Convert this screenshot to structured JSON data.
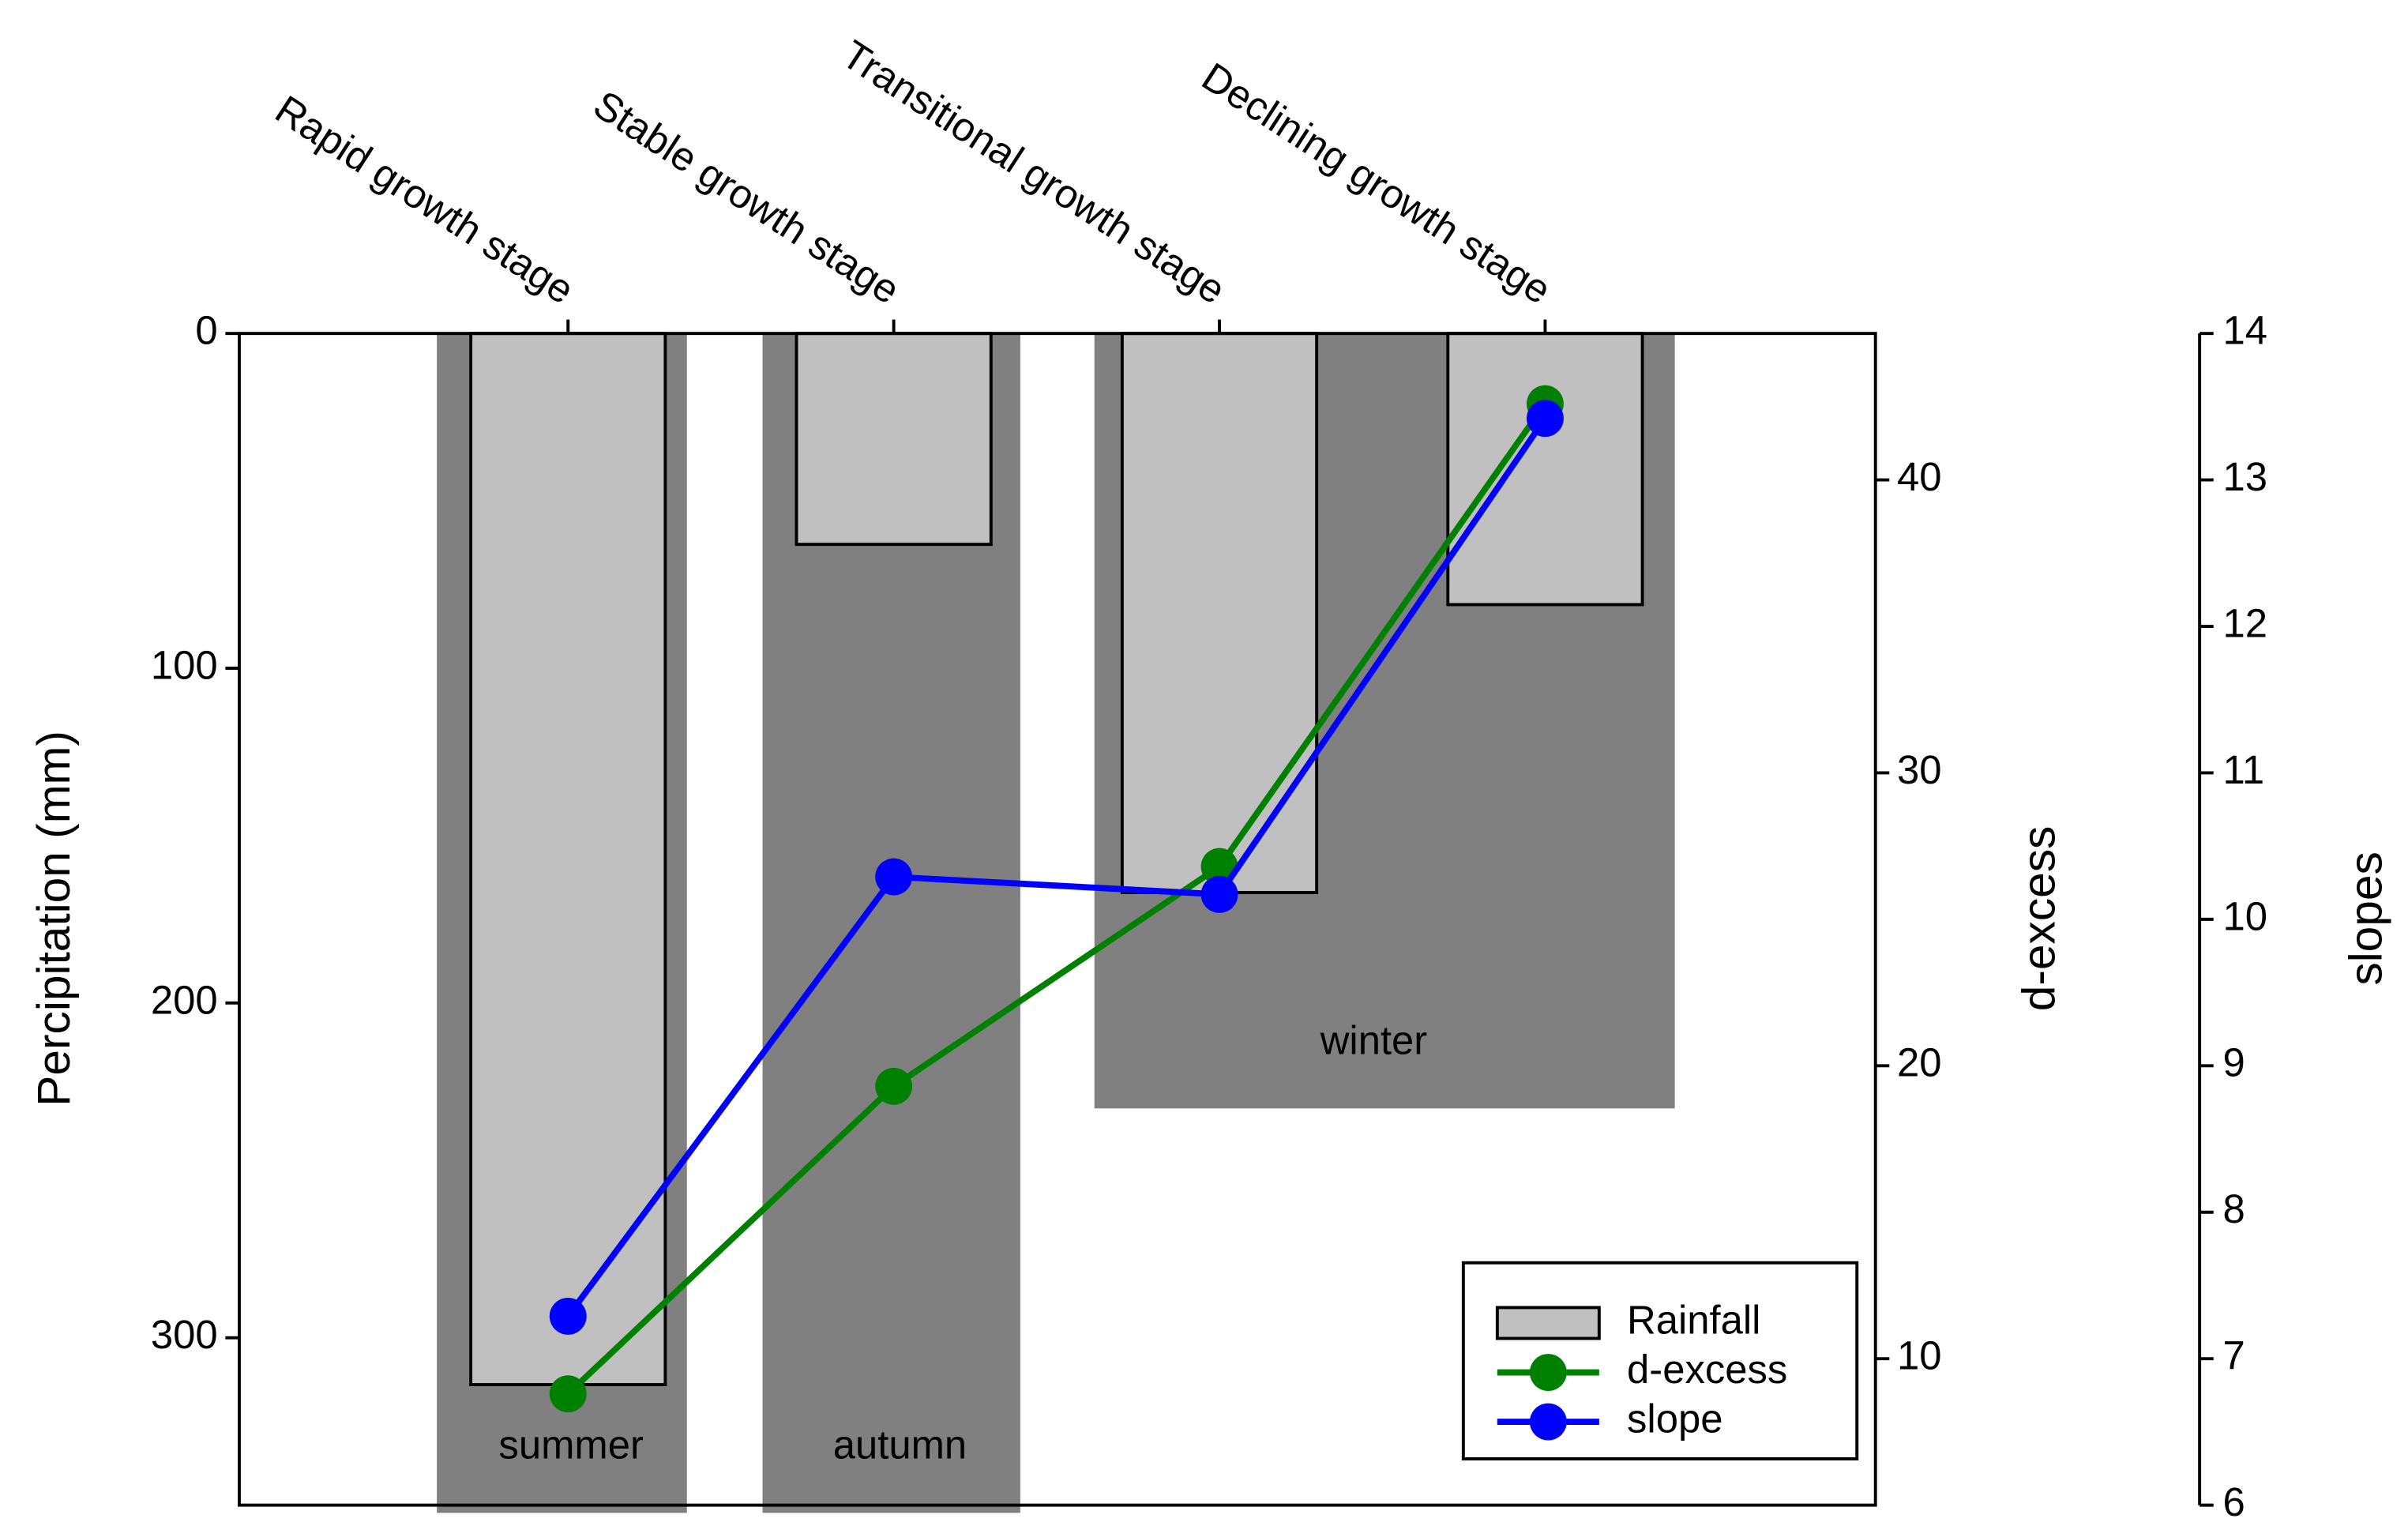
{
  "chart_data": {
    "type": "bar-line",
    "categories": [
      "Rapid growth stage",
      "Stable growth stage",
      "Transitional growth stage",
      "Declining growth stage"
    ],
    "seasons": [
      "summer",
      "autumn",
      "winter"
    ],
    "ylabel": "Percipitation (mm)",
    "y2label": "d-excess",
    "y3label": "slopes",
    "ylim": [
      0,
      350
    ],
    "yticks": [
      0,
      100,
      200,
      300
    ],
    "inverted_y": true,
    "y2lim": [
      5,
      45
    ],
    "y2ticks": [
      10,
      20,
      30,
      40
    ],
    "y3lim": [
      6,
      14
    ],
    "y3ticks": [
      6,
      7,
      8,
      9,
      10,
      11,
      12,
      13,
      14
    ],
    "series": [
      {
        "name": "Rainfall",
        "type": "bar",
        "axis": "y",
        "color": "#c0c0c0",
        "values": [
          314,
          63,
          167,
          81
        ]
      },
      {
        "name": "d-excess",
        "type": "line",
        "axis": "y2",
        "color": "#008000",
        "values": [
          8.8,
          19.3,
          26.8,
          42.6
        ]
      },
      {
        "name": "slope",
        "type": "line",
        "axis": "y3",
        "color": "#0000ff",
        "values": [
          7.29,
          10.29,
          10.17,
          13.42
        ]
      }
    ],
    "legend": "lower right"
  }
}
